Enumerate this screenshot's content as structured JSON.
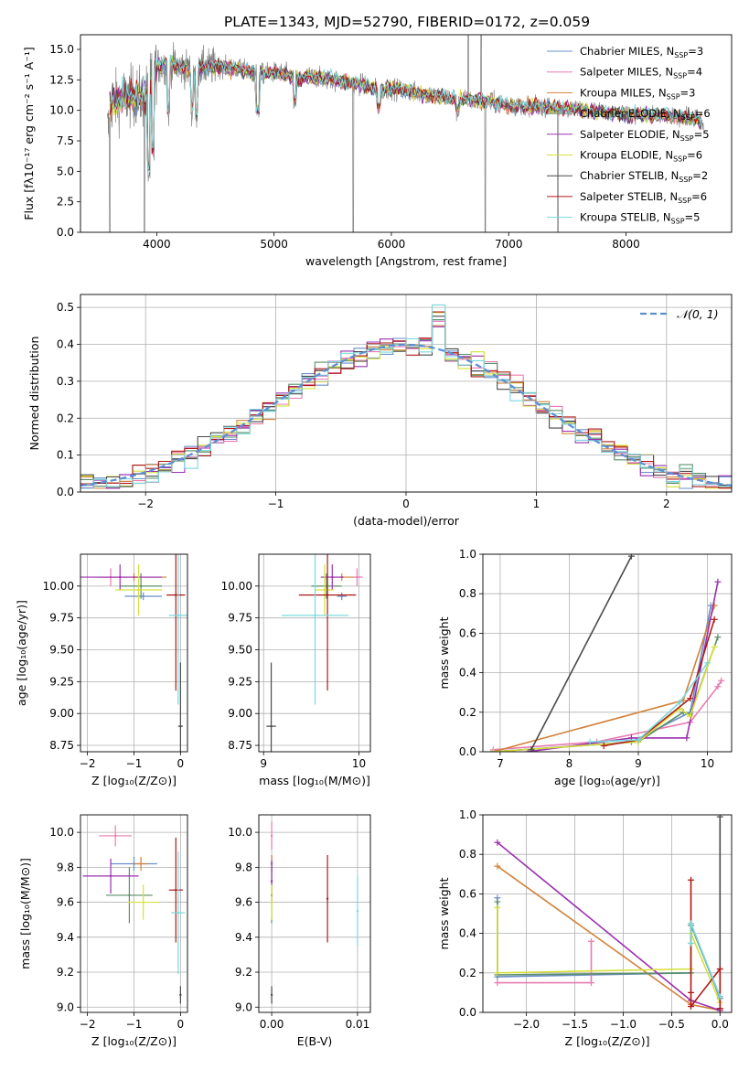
{
  "figure_title": "PLATE=1343, MJD=52790, FIBERID=0172, z=0.059",
  "colors": {
    "Chabrier MILES": "#6a8fc8",
    "Salpeter MILES": "#e87bb0",
    "Kroupa MILES": "#d2823a",
    "Chabrier ELODIE": "#5a8f6a",
    "Salpeter ELODIE": "#9b30b0",
    "Kroupa ELODIE": "#d6e03a",
    "Chabrier STELIB": "#4a4a4a",
    "Salpeter STELIB": "#b01818",
    "Kroupa STELIB": "#7ad8dc",
    "data": "#808080"
  },
  "chart_data": [
    {
      "id": "spectrum",
      "type": "line",
      "xlabel": "wavelength [Angstrom, rest frame]",
      "ylabel": "Flux [fλ10⁻¹⁷ erg cm⁻² s⁻¹ A⁻¹]",
      "xlim": [
        3350,
        8900
      ],
      "ylim": [
        0,
        16.2
      ],
      "xticks": [
        4000,
        5000,
        6000,
        7000,
        8000
      ],
      "yticks": [
        0.0,
        2.5,
        5.0,
        7.5,
        10.0,
        12.5,
        15.0
      ],
      "legend_position": "top-right",
      "legend": [
        {
          "key": "Chabrier MILES",
          "label": "Chabrier MILES, N",
          "n": "=3"
        },
        {
          "key": "Salpeter MILES",
          "label": "Salpeter MILES, N",
          "n": "=4"
        },
        {
          "key": "Kroupa MILES",
          "label": "Kroupa MILES, N",
          "n": "=3"
        },
        {
          "key": "Chabrier ELODIE",
          "label": "Chabrier ELODIE, N",
          "n": "=6"
        },
        {
          "key": "Salpeter ELODIE",
          "label": "Salpeter ELODIE, N",
          "n": "=5"
        },
        {
          "key": "Kroupa ELODIE",
          "label": "Kroupa ELODIE, N",
          "n": "=6"
        },
        {
          "key": "Chabrier STELIB",
          "label": "Chabrier STELIB, N",
          "n": "=2"
        },
        {
          "key": "Salpeter STELIB",
          "label": "Salpeter STELIB, N",
          "n": "=6"
        },
        {
          "key": "Kroupa STELIB",
          "label": "Kroupa STELIB, N",
          "n": "=5"
        }
      ],
      "legend_subscript": "SSP",
      "continuum": [
        [
          3600,
          10.5
        ],
        [
          3700,
          11.0
        ],
        [
          3800,
          11.2
        ],
        [
          3900,
          11.0
        ],
        [
          4000,
          13.6
        ],
        [
          4100,
          13.8
        ],
        [
          4200,
          13.6
        ],
        [
          4300,
          13.2
        ],
        [
          4400,
          13.5
        ],
        [
          4500,
          13.6
        ],
        [
          4600,
          13.5
        ],
        [
          4700,
          13.4
        ],
        [
          4800,
          13.2
        ],
        [
          4900,
          13.0
        ],
        [
          5000,
          13.1
        ],
        [
          5100,
          13.0
        ],
        [
          5200,
          12.4
        ],
        [
          5300,
          12.8
        ],
        [
          5400,
          12.6
        ],
        [
          5500,
          12.5
        ],
        [
          5600,
          12.3
        ],
        [
          5700,
          12.2
        ],
        [
          5800,
          12.0
        ],
        [
          5900,
          11.6
        ],
        [
          6000,
          11.8
        ],
        [
          6200,
          11.5
        ],
        [
          6400,
          11.2
        ],
        [
          6600,
          10.9
        ],
        [
          6800,
          10.7
        ],
        [
          7000,
          10.4
        ],
        [
          7200,
          10.3
        ],
        [
          7400,
          10.2
        ],
        [
          7600,
          10.1
        ],
        [
          7800,
          9.9
        ],
        [
          8000,
          9.7
        ],
        [
          8200,
          9.6
        ],
        [
          8400,
          9.5
        ],
        [
          8600,
          9.3
        ],
        [
          8700,
          8.5
        ]
      ]
    },
    {
      "id": "residuals",
      "type": "line",
      "xlabel": "(data-model)/error",
      "ylabel": "Normed distribution",
      "xlim": [
        -2.5,
        2.5
      ],
      "ylim": [
        0,
        0.535
      ],
      "xticks": [
        -2,
        -1,
        0,
        1,
        2
      ],
      "yticks": [
        0.0,
        0.1,
        0.2,
        0.3,
        0.4,
        0.5
      ],
      "grid": true,
      "legend_position": "top-right",
      "legend_label": "𝒩(0, 1)",
      "bin_width": 0.1
    },
    {
      "id": "age_vs_Z",
      "type": "scatter",
      "xlabel": "Z [log₁₀(Z/Z⊙)]",
      "ylabel": "age  [log₁₀(age/yr)]",
      "xlim": [
        -2.15,
        0.15
      ],
      "ylim": [
        8.7,
        10.25
      ],
      "xticks": [
        -2,
        -1,
        0
      ],
      "yticks": [
        8.75,
        9.0,
        9.25,
        9.5,
        9.75,
        10.0
      ],
      "grid": true,
      "points": [
        {
          "key": "Chabrier MILES",
          "x": -0.8,
          "xerr": 0.4,
          "y": 9.92,
          "yerr": 0.03
        },
        {
          "key": "Salpeter MILES",
          "x": -1.5,
          "xerr": 0.35,
          "y": 10.07,
          "yerr": 0.07
        },
        {
          "key": "Kroupa MILES",
          "x": -1.0,
          "xerr": 0.7,
          "y": 10.07,
          "yerr": 0.03
        },
        {
          "key": "Chabrier ELODIE",
          "x": -0.85,
          "xerr": 0.45,
          "y": 10.0,
          "yerr": 0.1
        },
        {
          "key": "Salpeter ELODIE",
          "x": -1.3,
          "xerr": 0.9,
          "y": 10.07,
          "yerr": 0.1
        },
        {
          "key": "Kroupa ELODIE",
          "x": -0.9,
          "xerr": 0.5,
          "y": 9.97,
          "yerr": 0.2
        },
        {
          "key": "Chabrier STELIB",
          "x": 0.0,
          "xerr": 0.05,
          "y": 8.9,
          "yerr": 0.5
        },
        {
          "key": "Salpeter STELIB",
          "x": -0.1,
          "xerr": 0.2,
          "y": 9.93,
          "yerr": 0.75
        },
        {
          "key": "Kroupa STELIB",
          "x": -0.05,
          "xerr": 0.2,
          "y": 9.77,
          "yerr": 0.7
        }
      ]
    },
    {
      "id": "age_vs_mass",
      "type": "scatter",
      "xlabel": "mass [log₁₀(M/M⊙)]",
      "ylabel": "",
      "xlim": [
        8.95,
        10.12
      ],
      "ylim": [
        8.7,
        10.25
      ],
      "xticks": [
        9,
        10
      ],
      "yticks": [
        8.75,
        9.0,
        9.25,
        9.5,
        9.75,
        10.0
      ],
      "grid": true,
      "points": [
        {
          "key": "Chabrier MILES",
          "x": 9.82,
          "xerr": 0.05,
          "y": 9.92,
          "yerr": 0.03
        },
        {
          "key": "Salpeter MILES",
          "x": 9.98,
          "xerr": 0.06,
          "y": 10.07,
          "yerr": 0.07
        },
        {
          "key": "Kroupa MILES",
          "x": 9.82,
          "xerr": 0.12,
          "y": 10.07,
          "yerr": 0.03
        },
        {
          "key": "Chabrier ELODIE",
          "x": 9.66,
          "xerr": 0.16,
          "y": 10.0,
          "yerr": 0.1
        },
        {
          "key": "Salpeter ELODIE",
          "x": 9.72,
          "xerr": 0.12,
          "y": 10.07,
          "yerr": 0.1
        },
        {
          "key": "Kroupa ELODIE",
          "x": 9.64,
          "xerr": 0.1,
          "y": 9.97,
          "yerr": 0.2
        },
        {
          "key": "Chabrier STELIB",
          "x": 9.08,
          "xerr": 0.05,
          "y": 8.9,
          "yerr": 0.5
        },
        {
          "key": "Salpeter STELIB",
          "x": 9.67,
          "xerr": 0.3,
          "y": 9.93,
          "yerr": 0.75
        },
        {
          "key": "Kroupa STELIB",
          "x": 9.54,
          "xerr": 0.35,
          "y": 9.77,
          "yerr": 0.7
        }
      ]
    },
    {
      "id": "weight_vs_age",
      "type": "line",
      "xlabel": "age  [log₁₀(age/yr)]",
      "ylabel": "mass weight",
      "xlim": [
        6.75,
        10.35
      ],
      "ylim": [
        0,
        1.0
      ],
      "xticks": [
        7,
        8,
        9,
        10
      ],
      "yticks": [
        0.0,
        0.2,
        0.4,
        0.6,
        0.8,
        1.0
      ],
      "grid": true,
      "series": [
        {
          "key": "Chabrier MILES",
          "x": [
            6.9,
            8.9,
            9.75,
            10.05
          ],
          "y": [
            0.0,
            0.05,
            0.2,
            0.74
          ]
        },
        {
          "key": "Salpeter MILES",
          "x": [
            6.9,
            8.4,
            9.75,
            10.15,
            10.2
          ],
          "y": [
            0.01,
            0.05,
            0.15,
            0.33,
            0.36
          ]
        },
        {
          "key": "Kroupa MILES",
          "x": [
            6.9,
            9.65,
            10.1
          ],
          "y": [
            0.0,
            0.26,
            0.74
          ]
        },
        {
          "key": "Chabrier ELODIE",
          "x": [
            6.9,
            9.0,
            9.65,
            9.75,
            10.15
          ],
          "y": [
            0.0,
            0.05,
            0.2,
            0.19,
            0.58
          ]
        },
        {
          "key": "Salpeter ELODIE",
          "x": [
            7.4,
            8.9,
            9.7,
            10.15
          ],
          "y": [
            0.0,
            0.07,
            0.07,
            0.86
          ]
        },
        {
          "key": "Kroupa ELODIE",
          "x": [
            6.9,
            9.0,
            9.6,
            9.75,
            10.1
          ],
          "y": [
            0.0,
            0.05,
            0.22,
            0.18,
            0.53
          ]
        },
        {
          "key": "Chabrier STELIB",
          "x": [
            7.45,
            8.9
          ],
          "y": [
            0.01,
            0.99
          ]
        },
        {
          "key": "Salpeter STELIB",
          "x": [
            8.5,
            9.0,
            9.75,
            10.1
          ],
          "y": [
            0.03,
            0.06,
            0.27,
            0.67
          ]
        },
        {
          "key": "Kroupa STELIB",
          "x": [
            8.3,
            9.0,
            9.6,
            10.0
          ],
          "y": [
            0.05,
            0.06,
            0.25,
            0.45
          ]
        }
      ]
    },
    {
      "id": "mass_vs_Z",
      "type": "scatter",
      "xlabel": "Z [log₁₀(Z/Z⊙)]",
      "ylabel": "mass [log₁₀(M/M⊙)]",
      "xlim": [
        -2.15,
        0.15
      ],
      "ylim": [
        8.97,
        10.1
      ],
      "xticks": [
        -2,
        -1,
        0
      ],
      "yticks": [
        9.0,
        9.2,
        9.4,
        9.6,
        9.8,
        10.0
      ],
      "grid": true,
      "points": [
        {
          "key": "Chabrier MILES",
          "x": -1.0,
          "xerr": 0.5,
          "y": 9.82,
          "yerr": 0.04
        },
        {
          "key": "Salpeter MILES",
          "x": -1.4,
          "xerr": 0.35,
          "y": 9.98,
          "yerr": 0.06
        },
        {
          "key": "Kroupa MILES",
          "x": -0.85,
          "xerr": 0.15,
          "y": 9.82,
          "yerr": 0.04
        },
        {
          "key": "Chabrier ELODIE",
          "x": -1.1,
          "xerr": 0.5,
          "y": 9.64,
          "yerr": 0.16
        },
        {
          "key": "Salpeter ELODIE",
          "x": -1.5,
          "xerr": 0.6,
          "y": 9.75,
          "yerr": 0.1
        },
        {
          "key": "Kroupa ELODIE",
          "x": -0.8,
          "xerr": 0.35,
          "y": 9.6,
          "yerr": 0.1
        },
        {
          "key": "Chabrier STELIB",
          "x": 0.0,
          "xerr": 0.02,
          "y": 9.07,
          "yerr": 0.05
        },
        {
          "key": "Salpeter STELIB",
          "x": -0.1,
          "xerr": 0.15,
          "y": 9.67,
          "yerr": 0.3
        },
        {
          "key": "Kroupa STELIB",
          "x": -0.05,
          "xerr": 0.15,
          "y": 9.54,
          "yerr": 0.35
        }
      ]
    },
    {
      "id": "mass_vs_EBV",
      "type": "scatter",
      "xlabel": "E(B-V)",
      "ylabel": "",
      "xlim": [
        -0.0015,
        0.0115
      ],
      "ylim": [
        8.97,
        10.1
      ],
      "xticks": [
        0.0,
        0.01
      ],
      "yticks": [
        9.0,
        9.2,
        9.4,
        9.6,
        9.8,
        10.0
      ],
      "grid": true,
      "points": [
        {
          "key": "Chabrier MILES",
          "x": 0.0,
          "y": 9.82,
          "yerr": 0.05
        },
        {
          "key": "Salpeter MILES",
          "x": 0.0,
          "y": 9.98,
          "yerr": 0.08
        },
        {
          "key": "Kroupa MILES",
          "x": 0.0,
          "y": 9.82,
          "yerr": 0.05
        },
        {
          "key": "Chabrier ELODIE",
          "x": 0.0,
          "y": 9.64,
          "yerr": 0.16
        },
        {
          "key": "Salpeter ELODIE",
          "x": 0.0,
          "y": 9.72,
          "yerr": 0.12
        },
        {
          "key": "Kroupa ELODIE",
          "x": 0.0,
          "y": 9.6,
          "yerr": 0.1
        },
        {
          "key": "Chabrier STELIB",
          "x": 0.0,
          "y": 9.07,
          "yerr": 0.05
        },
        {
          "key": "Salpeter STELIB",
          "x": 0.0065,
          "y": 9.62,
          "yerr": 0.25
        },
        {
          "key": "Kroupa STELIB",
          "x": 0.01,
          "y": 9.55,
          "yerr": 0.2
        }
      ]
    },
    {
      "id": "weight_vs_Z",
      "type": "line",
      "xlabel": "Z [log₁₀(Z/Z⊙)]",
      "ylabel": "mass weight",
      "xlim": [
        -2.45,
        0.12
      ],
      "ylim": [
        0,
        1.0
      ],
      "xticks": [
        -2.0,
        -1.5,
        -1.0,
        -0.5,
        0.0
      ],
      "grid": true,
      "yticks": [
        0.0,
        0.2,
        0.4,
        0.6,
        0.8,
        1.0
      ],
      "series": [
        {
          "key": "Chabrier MILES",
          "x": [
            -2.3,
            -2.3,
            -0.3,
            -0.3,
            0.0
          ],
          "y": [
            0.58,
            0.18,
            0.2,
            0.45,
            0.07
          ]
        },
        {
          "key": "Salpeter MILES",
          "x": [
            -2.3,
            -1.33,
            -1.33
          ],
          "y": [
            0.15,
            0.15,
            0.36
          ]
        },
        {
          "key": "Kroupa MILES",
          "x": [
            -2.3,
            -0.3,
            0.0
          ],
          "y": [
            0.74,
            0.04,
            0.01
          ]
        },
        {
          "key": "Chabrier ELODIE",
          "x": [
            -2.3,
            -2.3,
            -0.3,
            -0.3,
            0.0
          ],
          "y": [
            0.56,
            0.19,
            0.2,
            0.44,
            0.08
          ]
        },
        {
          "key": "Salpeter ELODIE",
          "x": [
            -2.3,
            -0.3,
            0.0
          ],
          "y": [
            0.86,
            0.06,
            0.01
          ]
        },
        {
          "key": "Kroupa ELODIE",
          "x": [
            -2.3,
            -2.3,
            -0.3,
            -0.3,
            0.0
          ],
          "y": [
            0.53,
            0.2,
            0.22,
            0.4,
            0.05
          ]
        },
        {
          "key": "Chabrier STELIB",
          "x": [
            0.0,
            0.0
          ],
          "y": [
            0.02,
            0.99
          ]
        },
        {
          "key": "Salpeter STELIB",
          "x": [
            -0.3,
            -0.3,
            -0.3,
            0.0,
            0.0
          ],
          "y": [
            0.67,
            0.1,
            0.03,
            0.22,
            0.02
          ]
        },
        {
          "key": "Kroupa STELIB",
          "x": [
            -0.3,
            -0.3,
            0.0
          ],
          "y": [
            0.35,
            0.45,
            0.08
          ]
        }
      ]
    }
  ]
}
